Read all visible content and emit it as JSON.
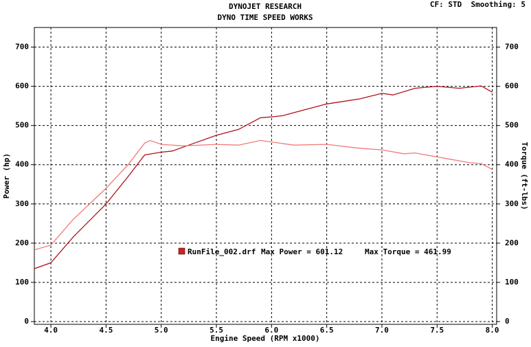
{
  "chart_data": {
    "type": "line",
    "title": "DYNOJET RESEARCH",
    "subtitle": "DYNO TIME SPEED WORKS",
    "settings_label": "CF: STD  Smoothing: 5",
    "x_label": "Engine Speed (RPM x1000)",
    "y_label": "Power (hp)",
    "y2_label": "Torque (ft-lbs)",
    "legend_label": "RunFile_002.drf",
    "annotations": [
      "Max Power = 601.12",
      "Max Torque = 461.99"
    ],
    "legend_color": "#d42020",
    "grid": true,
    "xlim": [
      3.85,
      8.04
    ],
    "xticks": [
      {
        "value": 4,
        "label": "4.0"
      },
      4.5,
      {
        "value": 5,
        "label": "5.0"
      },
      5.5,
      {
        "value": 6,
        "label": "6.0"
      },
      6.5,
      {
        "value": 7,
        "label": "7.0"
      },
      7.5,
      {
        "value": 8,
        "label": "8.0"
      }
    ],
    "ylim": [
      -7,
      750
    ],
    "yticks": [
      0,
      100,
      200,
      300,
      400,
      500,
      600,
      700
    ],
    "y2lim": [
      -7,
      750
    ],
    "y2ticks": [
      0,
      100,
      200,
      300,
      400,
      500,
      600,
      700
    ],
    "series": [
      {
        "color": "#b0101a",
        "x": [
          3.85,
          4.0,
          4.2,
          4.5,
          4.7,
          4.85,
          5.0,
          5.1,
          5.3,
          5.5,
          5.7,
          5.9,
          6.0,
          6.1,
          6.3,
          6.5,
          6.8,
          7.0,
          7.1,
          7.3,
          7.5,
          7.7,
          7.9,
          8.0
        ],
        "values": [
          135,
          150,
          215,
          300,
          370,
          425,
          432,
          435,
          455,
          475,
          490,
          520,
          522,
          525,
          540,
          555,
          568,
          582,
          578,
          595,
          600,
          595,
          601,
          585
        ]
      },
      {
        "color": "#f07a78",
        "axis": "y2",
        "x": [
          3.85,
          4.0,
          4.2,
          4.5,
          4.7,
          4.85,
          4.9,
          5.0,
          5.2,
          5.5,
          5.7,
          5.9,
          6.0,
          6.2,
          6.5,
          6.8,
          7.0,
          7.2,
          7.3,
          7.6,
          7.8,
          7.9,
          8.0
        ],
        "values": [
          183,
          195,
          260,
          340,
          400,
          455,
          462,
          452,
          448,
          452,
          450,
          462,
          458,
          450,
          452,
          442,
          438,
          428,
          430,
          415,
          405,
          403,
          388
        ]
      }
    ]
  }
}
